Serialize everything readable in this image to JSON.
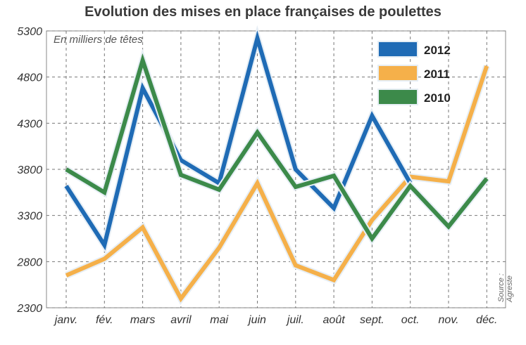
{
  "chart_data": {
    "type": "line",
    "title": "Evolution des mises en place françaises de poulettes",
    "unit_note": "En milliers de têtes",
    "source": "Source : Agreste",
    "categories": [
      "janv.",
      "fév.",
      "mars",
      "avril",
      "mai",
      "juin",
      "juil.",
      "août",
      "sept.",
      "oct.",
      "nov.",
      "déc."
    ],
    "ylim": [
      2300,
      5300
    ],
    "yticks": [
      2300,
      2800,
      3300,
      3800,
      4300,
      4800,
      5300
    ],
    "grid": true,
    "legend_position": "top-right",
    "series": [
      {
        "name": "2011",
        "color": "#f5b04a",
        "values": [
          2650,
          2830,
          3170,
          2400,
          2950,
          3650,
          2760,
          2600,
          3250,
          3720,
          3670,
          4920
        ]
      },
      {
        "name": "2012",
        "color": "#1f6bb5",
        "values": [
          3620,
          2980,
          4680,
          3900,
          3650,
          5220,
          3800,
          3380,
          4380,
          3650,
          null,
          null
        ]
      },
      {
        "name": "2010",
        "color": "#3c8a4a",
        "values": [
          3800,
          3550,
          4980,
          3740,
          3580,
          4200,
          3610,
          3730,
          3050,
          3620,
          3180,
          3700
        ]
      }
    ],
    "legend_order": [
      "2012",
      "2011",
      "2010"
    ]
  }
}
